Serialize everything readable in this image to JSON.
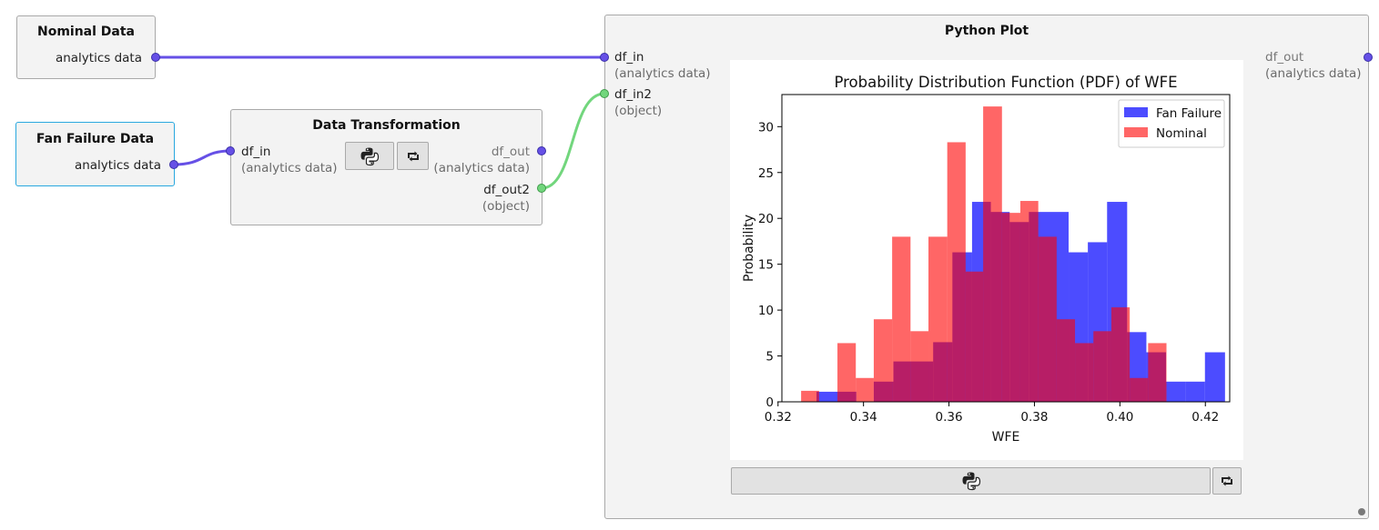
{
  "nodes": {
    "nominal": {
      "title": "Nominal Data",
      "output_label": "analytics data"
    },
    "fan_failure": {
      "title": "Fan Failure Data",
      "output_label": "analytics data"
    },
    "transform": {
      "title": "Data Transformation",
      "input_name": "df_in",
      "input_type": "(analytics data)",
      "output1_name": "df_out",
      "output1_type": "(analytics data)",
      "output2_name": "df_out2",
      "output2_type": "(object)",
      "python_button_icon": "python-logo-icon",
      "refresh_button_icon": "refresh-icon"
    },
    "python_plot": {
      "title": "Python Plot",
      "input1_name": "df_in",
      "input1_type": "(analytics data)",
      "input2_name": "df_in2",
      "input2_type": "(object)",
      "output_name": "df_out",
      "output_type": "(analytics data)",
      "python_button_icon": "python-logo-icon",
      "refresh_button_icon": "refresh-icon"
    }
  },
  "colors": {
    "wire_analytics": "#6650e6",
    "wire_object": "#72d67d",
    "selected_border": "#29a8df",
    "fan_failure": "#0000ff",
    "nominal": "#ff0000"
  },
  "chart_data": {
    "type": "bar",
    "title": "Probability Distribution Function (PDF) of WFE",
    "xlabel": "WFE",
    "ylabel": "Probability",
    "xlim": [
      0.3209,
      0.4257
    ],
    "ylim": [
      0,
      33.5
    ],
    "xticks": [
      "0.32",
      "0.34",
      "0.36",
      "0.38",
      "0.40",
      "0.42"
    ],
    "yticks": [
      "0",
      "5",
      "10",
      "15",
      "20",
      "25",
      "30"
    ],
    "legend_position": "top-right",
    "series": [
      {
        "name": "Fan Failure",
        "color": "#0000ff",
        "alpha": 0.7,
        "bins": [
          [
            0.329,
            0.3383,
            1.1
          ],
          [
            0.3383,
            0.3424,
            0
          ],
          [
            0.3424,
            0.347,
            2.2
          ],
          [
            0.347,
            0.3563,
            4.4
          ],
          [
            0.3563,
            0.3608,
            6.5
          ],
          [
            0.3608,
            0.3654,
            16.3
          ],
          [
            0.3654,
            0.3698,
            21.8
          ],
          [
            0.3698,
            0.3742,
            20.7
          ],
          [
            0.3742,
            0.3787,
            19.6
          ],
          [
            0.3787,
            0.388,
            20.7
          ],
          [
            0.388,
            0.3925,
            16.3
          ],
          [
            0.3925,
            0.397,
            17.4
          ],
          [
            0.397,
            0.4017,
            21.8
          ],
          [
            0.4017,
            0.4062,
            7.6
          ],
          [
            0.4062,
            0.4108,
            5.4
          ],
          [
            0.4108,
            0.4154,
            2.2
          ],
          [
            0.4154,
            0.4199,
            2.2
          ],
          [
            0.4199,
            0.4246,
            5.4
          ]
        ]
      },
      {
        "name": "Nominal",
        "color": "#ff0000",
        "alpha": 0.6,
        "bins": [
          [
            0.3254,
            0.3296,
            1.2
          ],
          [
            0.3296,
            0.3339,
            0
          ],
          [
            0.3339,
            0.3382,
            6.4
          ],
          [
            0.3382,
            0.3424,
            2.6
          ],
          [
            0.3424,
            0.3467,
            9.0
          ],
          [
            0.3467,
            0.351,
            18.0
          ],
          [
            0.351,
            0.3552,
            7.7
          ],
          [
            0.3552,
            0.3596,
            18.0
          ],
          [
            0.3596,
            0.3639,
            28.3
          ],
          [
            0.3639,
            0.368,
            14.2
          ],
          [
            0.368,
            0.3724,
            32.2
          ],
          [
            0.3724,
            0.3767,
            20.6
          ],
          [
            0.3767,
            0.3809,
            21.9
          ],
          [
            0.3809,
            0.3852,
            18.0
          ],
          [
            0.3852,
            0.3895,
            9.0
          ],
          [
            0.3895,
            0.3938,
            6.4
          ],
          [
            0.3938,
            0.398,
            7.7
          ],
          [
            0.398,
            0.4023,
            10.3
          ],
          [
            0.4023,
            0.4066,
            2.6
          ],
          [
            0.4066,
            0.4109,
            6.4
          ]
        ]
      }
    ]
  }
}
